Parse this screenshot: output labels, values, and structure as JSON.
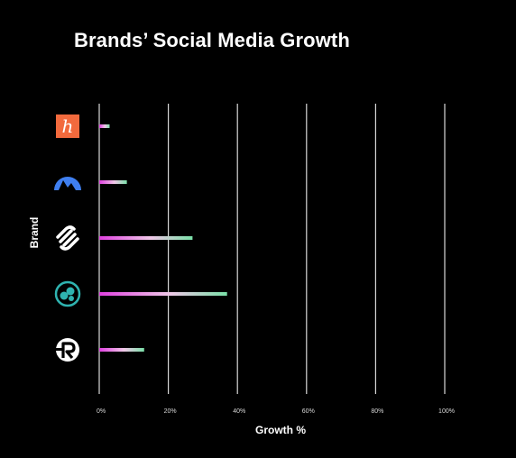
{
  "chart_data": {
    "type": "bar",
    "orientation": "horizontal",
    "title": "Brands’ Social Media Growth",
    "xlabel": "Growth %",
    "ylabel": "Brand",
    "xlim": [
      0,
      100
    ],
    "x_ticks": [
      0,
      20,
      40,
      60,
      80,
      100
    ],
    "x_tick_labels": [
      "0%",
      "20%",
      "40%",
      "60%",
      "80%",
      "100%"
    ],
    "grid": "vertical",
    "legend": "none",
    "categories": [
      {
        "icon": "orange-h-logo-icon",
        "value": 3
      },
      {
        "icon": "blue-mountain-logo-icon",
        "value": 8
      },
      {
        "icon": "squarespace-logo-icon",
        "value": 27
      },
      {
        "icon": "teal-circles-logo-icon",
        "value": 37
      },
      {
        "icon": "r-circle-logo-icon",
        "value": 13
      }
    ],
    "colors": {
      "background": "#000000",
      "grid": "#d9d9d9",
      "bar_start": "#e040e0",
      "bar_mid": "#f0c8e8",
      "bar_end": "#7ae0a8",
      "orange_logo": "#f26a3d",
      "blue_logo": "#3f7ff0",
      "teal_logo": "#2fb3b0"
    }
  }
}
